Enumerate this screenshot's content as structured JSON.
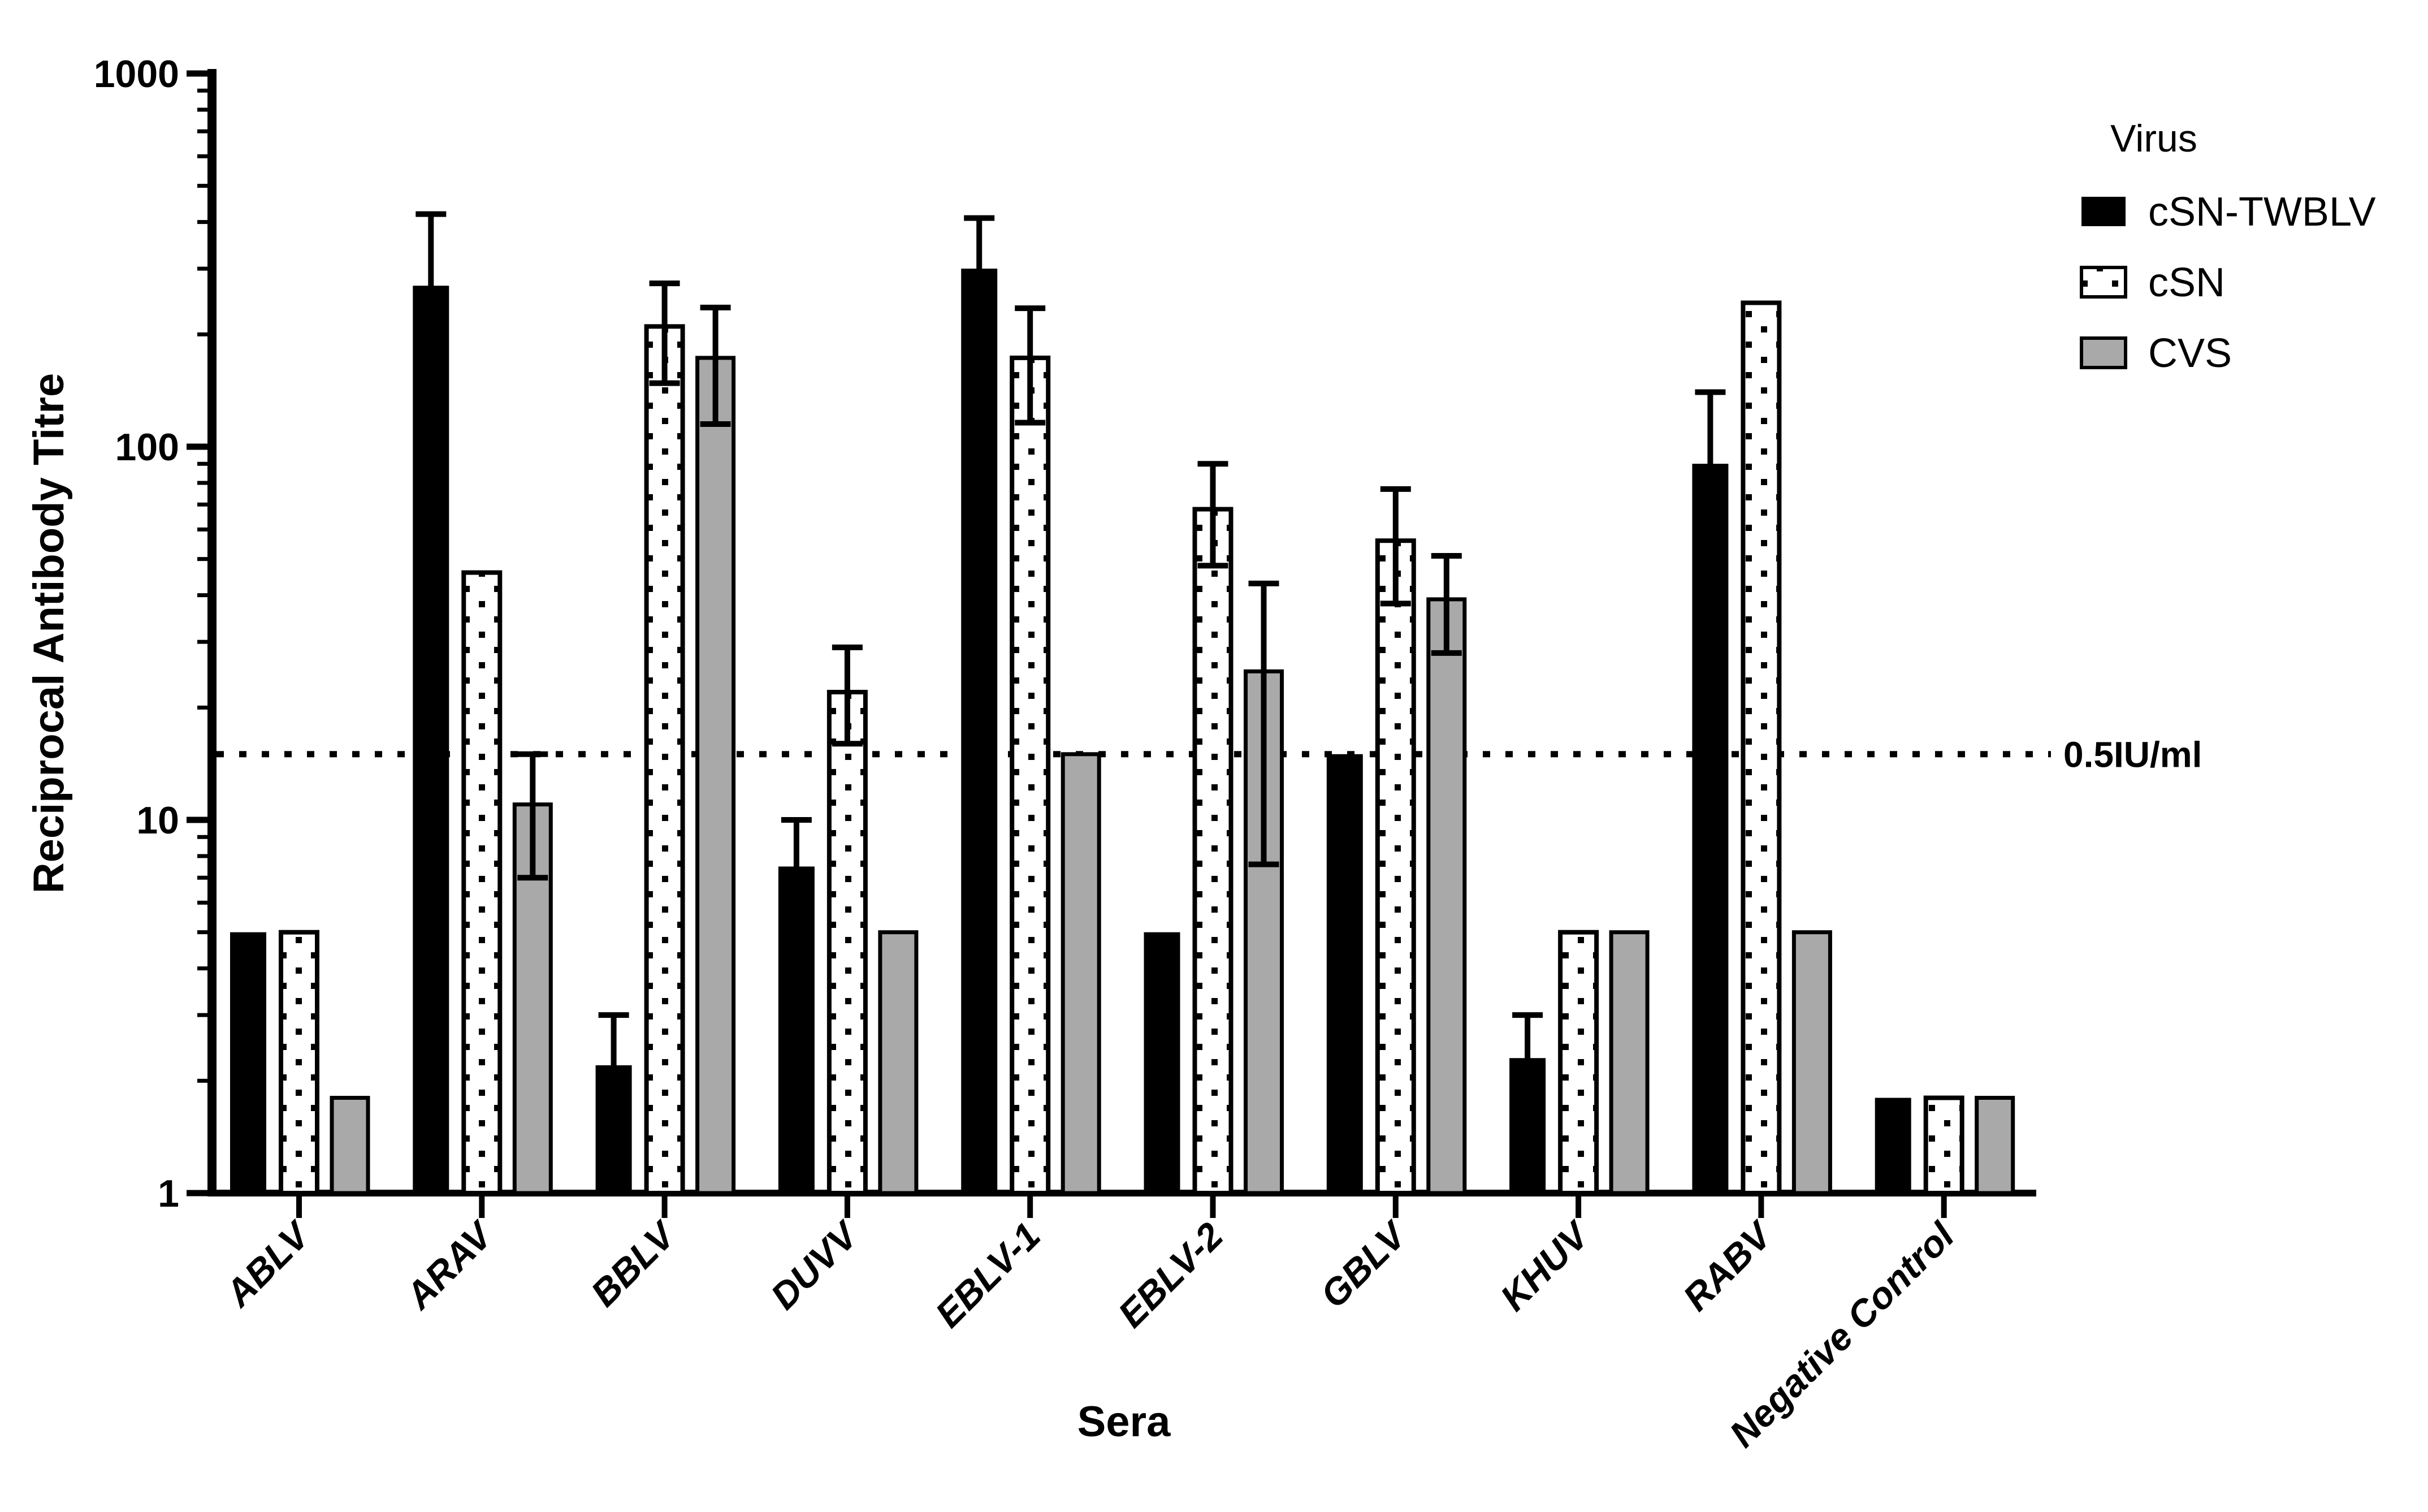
{
  "figure": {
    "background": "#ffffff",
    "ink": "#000000"
  },
  "chart_data": {
    "type": "bar",
    "title": "",
    "xlabel": "Sera",
    "ylabel": "Reciprocal Antibody Titre",
    "yscale": "log",
    "ylim": [
      1,
      1000
    ],
    "yticks": [
      "1",
      "10",
      "100",
      "1000"
    ],
    "grid": false,
    "threshold": {
      "value": 15,
      "label": "0.5IU/ml",
      "style": "dotted"
    },
    "legend": {
      "title": "Virus",
      "position": "top-right",
      "entries": [
        "cSN-TWBLV",
        "cSN",
        "CVS"
      ]
    },
    "categories": [
      "ABLV",
      "ARAV",
      "BBLV",
      "DUVV",
      "EBLV-1",
      "EBLV-2",
      "GBLV",
      "KHUV",
      "RABV",
      "Negative Control"
    ],
    "series": [
      {
        "name": "cSN-TWBLV",
        "fill": "#000000",
        "pattern": "solid",
        "values": [
          5,
          270,
          2.2,
          7.5,
          300,
          5,
          15,
          2.3,
          90,
          1.8
        ],
        "err_low": [
          null,
          null,
          null,
          null,
          null,
          null,
          null,
          null,
          null,
          null
        ],
        "err_high": [
          null,
          420,
          3,
          10,
          410,
          null,
          null,
          3,
          140,
          null
        ]
      },
      {
        "name": "cSN",
        "fill": "#ffffff",
        "pattern": "dots",
        "values": [
          5,
          46,
          210,
          22,
          173,
          68,
          56,
          5,
          243,
          1.8
        ],
        "err_low": [
          null,
          null,
          148,
          16,
          116,
          48,
          38,
          null,
          null,
          null
        ],
        "err_high": [
          null,
          null,
          274,
          29,
          235,
          90,
          77,
          null,
          null,
          null
        ]
      },
      {
        "name": "CVS",
        "fill": "#a9a9a9",
        "pattern": "solid",
        "values": [
          1.8,
          11,
          173,
          5,
          15,
          25,
          39,
          5,
          5,
          1.8
        ],
        "err_low": [
          null,
          7,
          115,
          null,
          null,
          7.6,
          28,
          null,
          null,
          null
        ],
        "err_high": [
          null,
          15,
          236,
          null,
          null,
          43,
          51,
          null,
          null,
          null
        ]
      }
    ]
  }
}
